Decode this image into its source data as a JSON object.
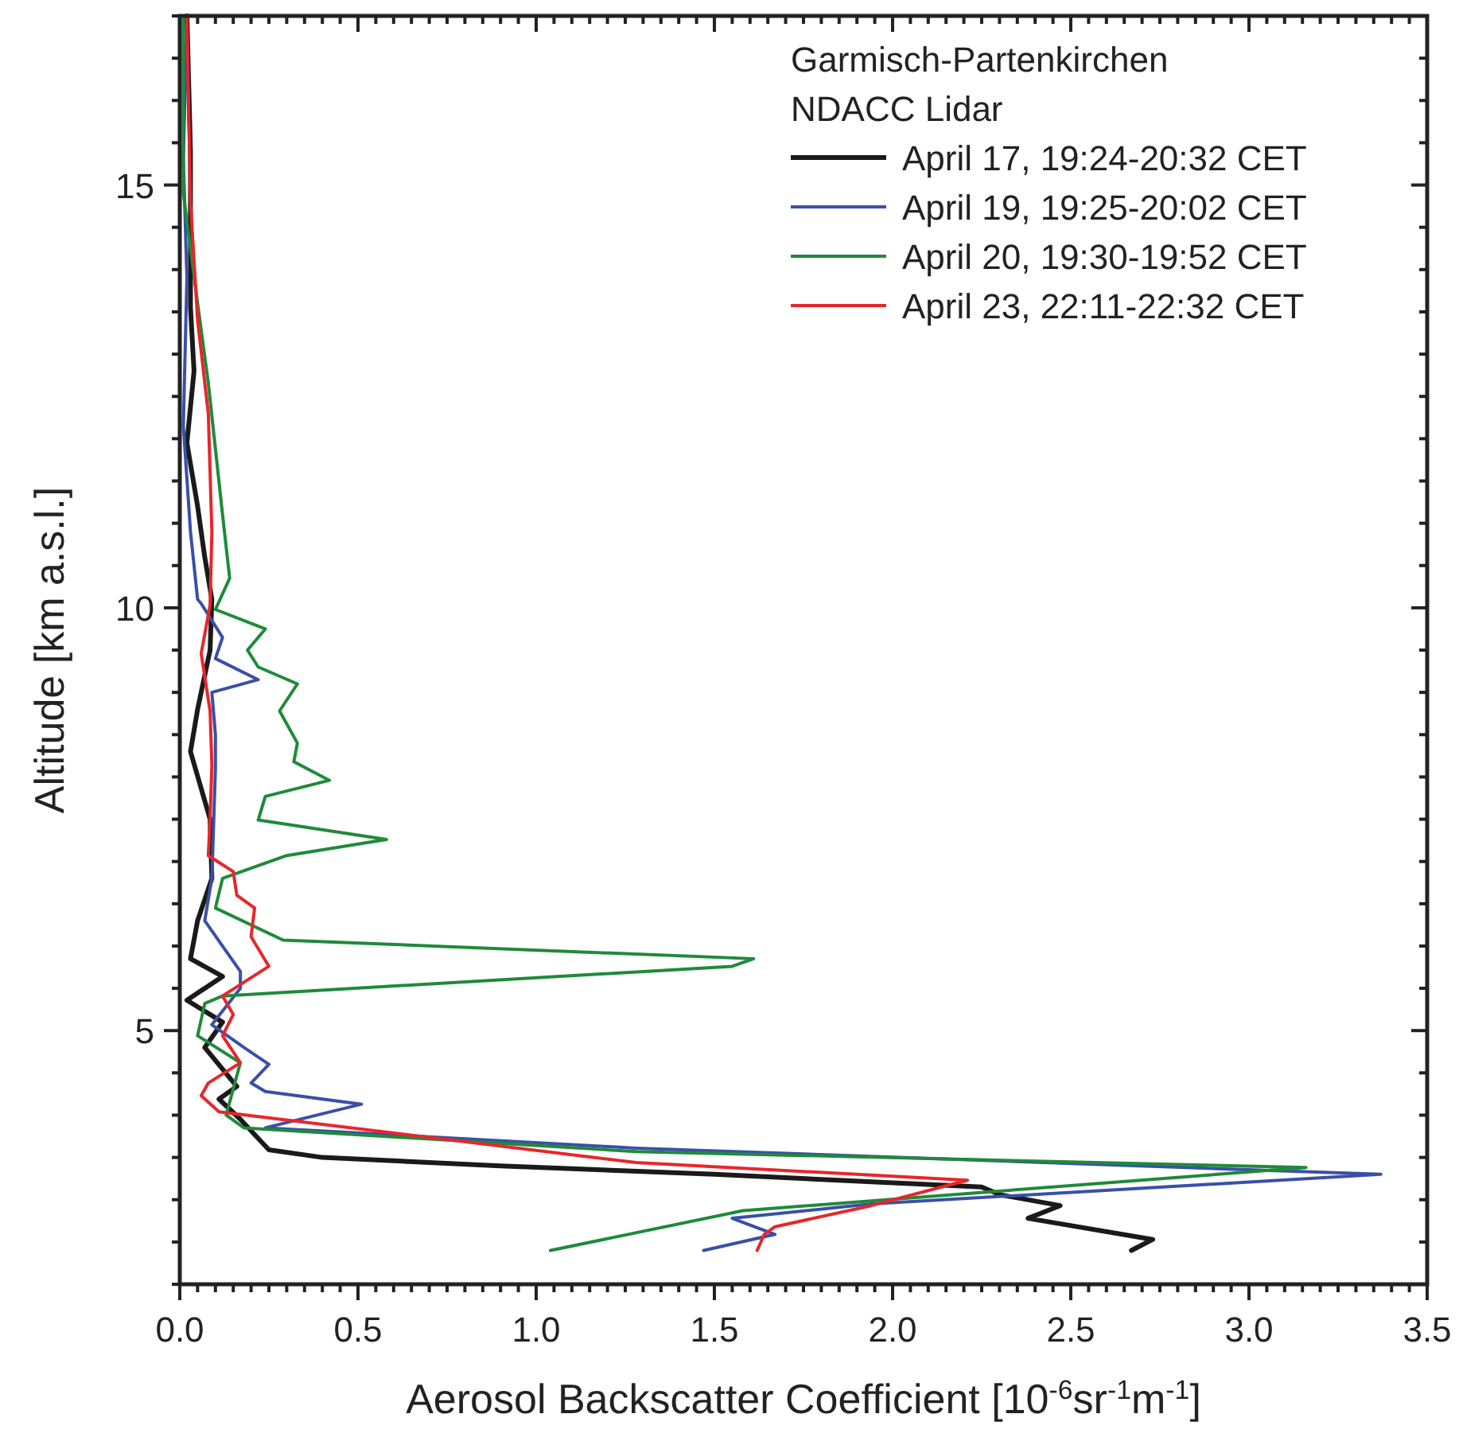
{
  "chart_data": {
    "type": "line",
    "xlabel": "Aerosol Backscatter Coefficient [10$^{-6}$sr$^{-1}$m$^{-1}$]",
    "ylabel": "Altitude [km a.s.l.]",
    "legend_title": "Garmisch-Partenkirchen\nNDACC Lidar",
    "legend": "top right",
    "grid": false,
    "marker": "none",
    "line_style": "solid",
    "xlim": [
      0,
      3.5
    ],
    "ylim": [
      2,
      17
    ],
    "xticks": [
      {
        "value": 0,
        "label": "0.0"
      },
      {
        "value": 0.05,
        "label": null
      },
      {
        "value": 0.1,
        "label": null
      },
      {
        "value": 0.15,
        "label": null
      },
      {
        "value": 0.2,
        "label": null
      },
      {
        "value": 0.25,
        "label": null
      },
      {
        "value": 0.3,
        "label": null
      },
      {
        "value": 0.35,
        "label": null
      },
      {
        "value": 0.4,
        "label": null
      },
      {
        "value": 0.45,
        "label": null
      },
      {
        "value": 0.5,
        "label": "0.5"
      },
      {
        "value": 0.55,
        "label": null
      },
      {
        "value": 0.6,
        "label": null
      },
      {
        "value": 0.65,
        "label": null
      },
      {
        "value": 0.7,
        "label": null
      },
      {
        "value": 0.75,
        "label": null
      },
      {
        "value": 0.8,
        "label": null
      },
      {
        "value": 0.85,
        "label": null
      },
      {
        "value": 0.9,
        "label": null
      },
      {
        "value": 0.95,
        "label": null
      },
      {
        "value": 1,
        "label": "1.0"
      },
      {
        "value": 1.05,
        "label": null
      },
      {
        "value": 1.1,
        "label": null
      },
      {
        "value": 1.15,
        "label": null
      },
      {
        "value": 1.2,
        "label": null
      },
      {
        "value": 1.25,
        "label": null
      },
      {
        "value": 1.3,
        "label": null
      },
      {
        "value": 1.35,
        "label": null
      },
      {
        "value": 1.4,
        "label": null
      },
      {
        "value": 1.45,
        "label": null
      },
      {
        "value": 1.5,
        "label": "1.5"
      },
      {
        "value": 1.55,
        "label": null
      },
      {
        "value": 1.6,
        "label": null
      },
      {
        "value": 1.65,
        "label": null
      },
      {
        "value": 1.7,
        "label": null
      },
      {
        "value": 1.75,
        "label": null
      },
      {
        "value": 1.8,
        "label": null
      },
      {
        "value": 1.85,
        "label": null
      },
      {
        "value": 1.9,
        "label": null
      },
      {
        "value": 1.95,
        "label": null
      },
      {
        "value": 2,
        "label": "2.0"
      },
      {
        "value": 2.05,
        "label": null
      },
      {
        "value": 2.1,
        "label": null
      },
      {
        "value": 2.15,
        "label": null
      },
      {
        "value": 2.2,
        "label": null
      },
      {
        "value": 2.25,
        "label": null
      },
      {
        "value": 2.3,
        "label": null
      },
      {
        "value": 2.35,
        "label": null
      },
      {
        "value": 2.4,
        "label": null
      },
      {
        "value": 2.45,
        "label": null
      },
      {
        "value": 2.5,
        "label": "2.5"
      },
      {
        "value": 2.55,
        "label": null
      },
      {
        "value": 2.6,
        "label": null
      },
      {
        "value": 2.65,
        "label": null
      },
      {
        "value": 2.7,
        "label": null
      },
      {
        "value": 2.75,
        "label": null
      },
      {
        "value": 2.8,
        "label": null
      },
      {
        "value": 2.85,
        "label": null
      },
      {
        "value": 2.9,
        "label": null
      },
      {
        "value": 2.95,
        "label": null
      },
      {
        "value": 3,
        "label": "3.0"
      },
      {
        "value": 3.05,
        "label": null
      },
      {
        "value": 3.1,
        "label": null
      },
      {
        "value": 3.15,
        "label": null
      },
      {
        "value": 3.2,
        "label": null
      },
      {
        "value": 3.25,
        "label": null
      },
      {
        "value": 3.3,
        "label": null
      },
      {
        "value": 3.35,
        "label": null
      },
      {
        "value": 3.4,
        "label": null
      },
      {
        "value": 3.45,
        "label": null
      },
      {
        "value": 3.5,
        "label": "3.5"
      }
    ],
    "yticks": [
      {
        "value": 2,
        "label": null
      },
      {
        "value": 2.5,
        "label": null
      },
      {
        "value": 3,
        "label": null
      },
      {
        "value": 3.5,
        "label": null
      },
      {
        "value": 4,
        "label": null
      },
      {
        "value": 4.5,
        "label": null
      },
      5,
      {
        "value": 5.5,
        "label": null
      },
      {
        "value": 6,
        "label": null
      },
      {
        "value": 6.5,
        "label": null
      },
      {
        "value": 7,
        "label": null
      },
      {
        "value": 7.5,
        "label": null
      },
      {
        "value": 8,
        "label": null
      },
      {
        "value": 8.5,
        "label": null
      },
      {
        "value": 9,
        "label": null
      },
      {
        "value": 9.5,
        "label": null
      },
      10,
      {
        "value": 10.5,
        "label": null
      },
      {
        "value": 11,
        "label": null
      },
      {
        "value": 11.5,
        "label": null
      },
      {
        "value": 12,
        "label": null
      },
      {
        "value": 12.5,
        "label": null
      },
      {
        "value": 13,
        "label": null
      },
      {
        "value": 13.5,
        "label": null
      },
      {
        "value": 14,
        "label": null
      },
      {
        "value": 14.5,
        "label": null
      },
      15,
      {
        "value": 15.5,
        "label": null
      },
      {
        "value": 16,
        "label": null
      },
      {
        "value": 16.5,
        "label": null
      },
      {
        "value": 17,
        "label": null
      }
    ],
    "series": [
      {
        "name": "April 17, 19:24-20:32 CET",
        "color": "#1a1a1a",
        "x": [
          2.67,
          2.73,
          2.38,
          2.47,
          2.3,
          2.25,
          1.5,
          0.9,
          0.4,
          0.25,
          0.17,
          0.11,
          0.16,
          0.07,
          0.12,
          0.02,
          0.12,
          0.03,
          0.05,
          0.09,
          0.085,
          0.03,
          0.05,
          0.085,
          0.09,
          0.07,
          0.05,
          0.02,
          0.04,
          0.03,
          0.03,
          0.02
        ],
        "values": [
          2.4,
          2.53,
          2.78,
          2.93,
          3.06,
          3.15,
          3.3,
          3.4,
          3.5,
          3.59,
          3.95,
          4.19,
          4.34,
          4.8,
          5.1,
          5.36,
          5.64,
          5.85,
          6.3,
          6.8,
          7.5,
          8.3,
          8.8,
          9.5,
          10.1,
          10.6,
          11.2,
          11.95,
          12.8,
          13.55,
          15.4,
          17
        ]
      },
      {
        "name": "April 19, 19:25-20:02 CET",
        "color": "#3a4fa8",
        "x": [
          1.47,
          1.67,
          1.55,
          1.94,
          3.37,
          1.28,
          0.24,
          0.51,
          0.24,
          0.2,
          0.25,
          0.18,
          0.09,
          0.17,
          0.17,
          0.07,
          0.09,
          0.1,
          0.1,
          0.09,
          0.22,
          0.1,
          0.12,
          0.06,
          0.05,
          0.03,
          0.01,
          0.02,
          0.01,
          0.02
        ],
        "values": [
          2.4,
          2.59,
          2.78,
          2.95,
          3.3,
          3.61,
          3.85,
          4.13,
          4.28,
          4.38,
          4.6,
          4.8,
          5.07,
          5.5,
          5.7,
          6.3,
          6.8,
          8.1,
          8.5,
          9,
          9.15,
          9.4,
          9.65,
          10.05,
          10.1,
          10.9,
          12.15,
          13.9,
          15.3,
          17
        ]
      },
      {
        "name": "April 20, 19:30-19:52 CET",
        "color": "#1f8a3a",
        "x": [
          1.04,
          1.58,
          3.16,
          1.28,
          0.18,
          0.13,
          0.17,
          0.05,
          0.07,
          0.12,
          1.55,
          1.61,
          0.29,
          0.1,
          0.12,
          0.3,
          0.58,
          0.22,
          0.24,
          0.42,
          0.32,
          0.33,
          0.28,
          0.33,
          0.22,
          0.19,
          0.24,
          0.1,
          0.14,
          0.12,
          0.08,
          0.05,
          0.01,
          0.01
        ],
        "values": [
          2.4,
          2.87,
          3.38,
          3.57,
          3.85,
          4,
          4.62,
          4.94,
          5.32,
          5.41,
          5.76,
          5.85,
          6.07,
          6.45,
          6.8,
          7.07,
          7.26,
          7.49,
          7.77,
          7.96,
          8.18,
          8.4,
          8.78,
          9.1,
          9.3,
          9.5,
          9.75,
          9.98,
          10.35,
          11.1,
          12.66,
          13.6,
          14.9,
          17
        ]
      },
      {
        "name": "April 23, 22:11-22:32 CET",
        "color": "#e8262a",
        "x": [
          1.62,
          1.64,
          1.67,
          1.94,
          2.21,
          1.28,
          0.11,
          0.06,
          0.08,
          0.17,
          0.12,
          0.15,
          0.12,
          0.25,
          0.2,
          0.21,
          0.16,
          0.15,
          0.08,
          0.085,
          0.09,
          0.085,
          0.06,
          0.085,
          0.09,
          0.08,
          0.05,
          0.03,
          0.02
        ],
        "values": [
          2.4,
          2.59,
          2.68,
          2.93,
          3.23,
          3.44,
          4.04,
          4.23,
          4.38,
          4.62,
          4.94,
          5.19,
          5.41,
          5.76,
          6.11,
          6.45,
          6.6,
          6.88,
          7.07,
          7.5,
          8.14,
          8.78,
          9.46,
          10.03,
          10.9,
          12.3,
          13.4,
          14.8,
          17
        ]
      }
    ]
  }
}
